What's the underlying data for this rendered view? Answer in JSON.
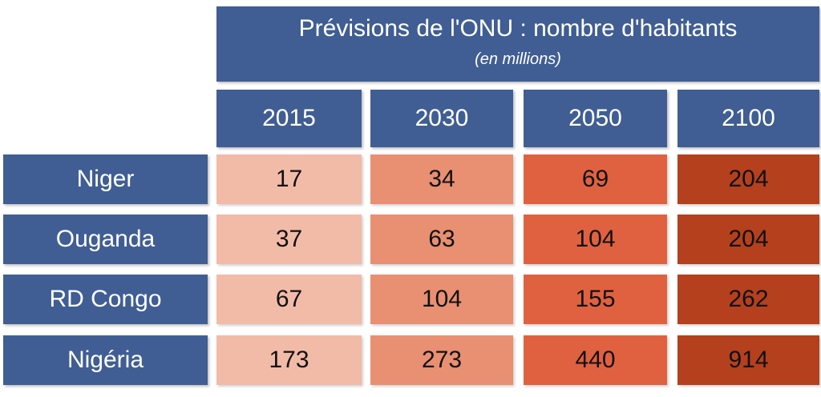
{
  "chart_data": {
    "type": "table",
    "title": "Prévisions de l'ONU : nombre d'habitants",
    "subtitle": "(en millions)",
    "columns": [
      "2015",
      "2030",
      "2050",
      "2100"
    ],
    "rows": [
      {
        "label": "Niger",
        "values": [
          17,
          34,
          69,
          204
        ]
      },
      {
        "label": "Ouganda",
        "values": [
          37,
          63,
          104,
          204
        ]
      },
      {
        "label": "RD Congo",
        "values": [
          67,
          104,
          155,
          262
        ]
      },
      {
        "label": "Nigéria",
        "values": [
          173,
          273,
          440,
          914
        ]
      }
    ],
    "colors": {
      "header": "#405e93",
      "columns": [
        "#f2bba8",
        "#e98f72",
        "#e06140",
        "#b4401d"
      ]
    }
  }
}
